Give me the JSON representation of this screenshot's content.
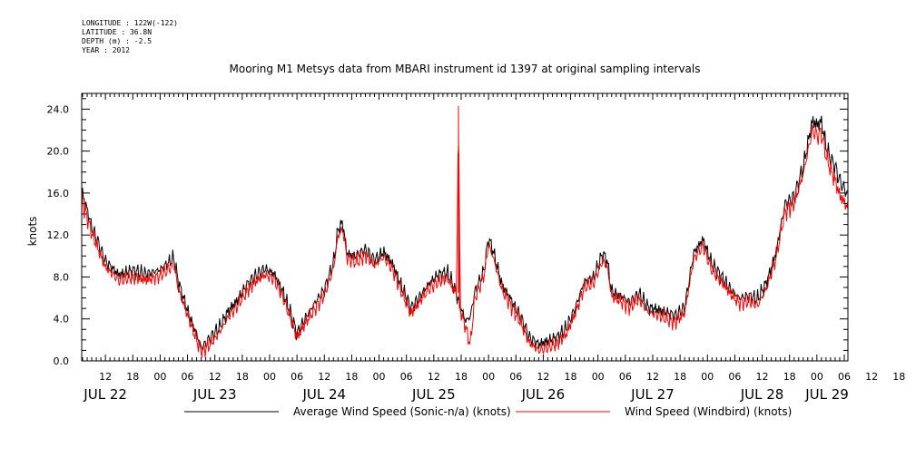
{
  "meta": {
    "longitude": "LONGITUDE : 122W(-122)",
    "latitude": "LATITUDE : 36.8N",
    "depth": "DEPTH (m) : -2.5",
    "year": "YEAR : 2012"
  },
  "chart_data": {
    "type": "line",
    "title": "Mooring M1 Metsys data from MBARI instrument id 1397 at original sampling intervals",
    "ylabel": "knots",
    "xlabel": "",
    "x_unit": "hours since JUL 22 00:00 (2012)",
    "xlim": [
      6.8,
      174.8
    ],
    "ylim": [
      0,
      25.5
    ],
    "y_ticks": [
      "0.0",
      "4.0",
      "8.0",
      "12.0",
      "16.0",
      "20.0",
      "24.0"
    ],
    "x_hour_labels": [
      "12",
      "18",
      "00",
      "06",
      "12",
      "18",
      "00",
      "06",
      "12",
      "18",
      "00",
      "06",
      "12",
      "18",
      "00",
      "06",
      "12",
      "18",
      "00",
      "06",
      "12",
      "18",
      "00",
      "06",
      "12",
      "18",
      "00",
      "06",
      "12",
      "18",
      "00",
      "06"
    ],
    "day_labels": [
      "JUL 22",
      "JUL 23",
      "JUL 24",
      "JUL 25",
      "JUL 26",
      "JUL 27",
      "JUL 28",
      "JUL 29"
    ],
    "grid": false,
    "legend_position": "bottom",
    "series": [
      {
        "name": "Average Wind Speed (Sonic-n/a) (knots)",
        "color": "#000000",
        "points": [
          [
            6.8,
            16.2
          ],
          [
            9,
            12.8
          ],
          [
            12,
            9.5
          ],
          [
            15,
            8.2
          ],
          [
            18,
            8.6
          ],
          [
            21,
            8.3
          ],
          [
            24,
            8.7
          ],
          [
            27,
            9.8
          ],
          [
            28,
            7.5
          ],
          [
            30,
            4.8
          ],
          [
            32,
            2.5
          ],
          [
            33,
            1.2
          ],
          [
            35,
            2.2
          ],
          [
            37,
            3.2
          ],
          [
            39,
            4.8
          ],
          [
            41,
            5.8
          ],
          [
            43,
            7.2
          ],
          [
            45,
            8.2
          ],
          [
            47,
            8.8
          ],
          [
            49,
            8.3
          ],
          [
            51,
            6.5
          ],
          [
            53,
            4.0
          ],
          [
            54,
            2.6
          ],
          [
            56,
            4.2
          ],
          [
            58,
            5.6
          ],
          [
            60,
            6.8
          ],
          [
            62,
            9.3
          ],
          [
            63,
            12.5
          ],
          [
            64,
            13.2
          ],
          [
            65,
            10.2
          ],
          [
            67,
            10.0
          ],
          [
            69,
            10.6
          ],
          [
            71,
            9.6
          ],
          [
            73,
            10.4
          ],
          [
            75,
            9.2
          ],
          [
            77,
            7.0
          ],
          [
            79,
            5.0
          ],
          [
            81,
            6.2
          ],
          [
            83,
            7.4
          ],
          [
            85,
            8.2
          ],
          [
            87,
            8.4
          ],
          [
            88,
            7.5
          ],
          [
            90,
            5.0
          ],
          [
            91,
            3.8
          ],
          [
            92,
            4.2
          ],
          [
            93,
            6.6
          ],
          [
            95,
            8.6
          ],
          [
            96,
            11.7
          ],
          [
            97,
            10.5
          ],
          [
            99,
            7.2
          ],
          [
            101,
            5.8
          ],
          [
            103,
            4.2
          ],
          [
            105,
            2.2
          ],
          [
            107,
            1.6
          ],
          [
            109,
            1.9
          ],
          [
            111,
            2.2
          ],
          [
            113,
            3.1
          ],
          [
            115,
            5.0
          ],
          [
            117,
            7.6
          ],
          [
            119,
            7.9
          ],
          [
            121,
            10.2
          ],
          [
            122,
            9.6
          ],
          [
            123,
            6.6
          ],
          [
            125,
            6.2
          ],
          [
            127,
            5.6
          ],
          [
            129,
            6.4
          ],
          [
            131,
            5.1
          ],
          [
            133,
            4.9
          ],
          [
            135,
            4.6
          ],
          [
            137,
            4.3
          ],
          [
            139,
            5.1
          ],
          [
            141,
            10.3
          ],
          [
            143,
            11.6
          ],
          [
            145,
            9.2
          ],
          [
            147,
            8.1
          ],
          [
            149,
            6.9
          ],
          [
            151,
            6.0
          ],
          [
            153,
            6.2
          ],
          [
            155,
            5.9
          ],
          [
            157,
            7.5
          ],
          [
            159,
            10.3
          ],
          [
            161,
            14.9
          ],
          [
            163,
            15.6
          ],
          [
            165,
            18.5
          ],
          [
            167,
            22.9
          ],
          [
            168,
            22.5
          ],
          [
            169,
            22.8
          ],
          [
            170,
            20.5
          ],
          [
            171,
            19.2
          ],
          [
            172,
            18.5
          ],
          [
            173,
            17.2
          ],
          [
            174.8,
            15.8
          ]
        ]
      },
      {
        "name": "Wind Speed (Windbird) (knots)",
        "color": "#ff0000",
        "points": [
          [
            6.8,
            15.4
          ],
          [
            9,
            12.2
          ],
          [
            12,
            8.9
          ],
          [
            15,
            7.7
          ],
          [
            18,
            8.0
          ],
          [
            21,
            7.7
          ],
          [
            24,
            8.1
          ],
          [
            27,
            9.2
          ],
          [
            28,
            6.9
          ],
          [
            30,
            4.3
          ],
          [
            32,
            2.0
          ],
          [
            33,
            0.8
          ],
          [
            35,
            1.6
          ],
          [
            37,
            2.7
          ],
          [
            39,
            4.2
          ],
          [
            41,
            5.3
          ],
          [
            43,
            6.7
          ],
          [
            45,
            7.6
          ],
          [
            47,
            8.2
          ],
          [
            49,
            7.8
          ],
          [
            51,
            6.0
          ],
          [
            53,
            3.5
          ],
          [
            54,
            2.2
          ],
          [
            56,
            3.7
          ],
          [
            58,
            5.0
          ],
          [
            60,
            6.3
          ],
          [
            62,
            8.8
          ],
          [
            63,
            11.9
          ],
          [
            64,
            12.6
          ],
          [
            65,
            9.8
          ],
          [
            67,
            9.4
          ],
          [
            69,
            10.1
          ],
          [
            71,
            9.1
          ],
          [
            73,
            9.9
          ],
          [
            75,
            8.7
          ],
          [
            77,
            6.5
          ],
          [
            79,
            4.5
          ],
          [
            81,
            5.7
          ],
          [
            83,
            6.9
          ],
          [
            85,
            7.6
          ],
          [
            87,
            7.9
          ],
          [
            88,
            7.0
          ],
          [
            89,
            6.5
          ],
          [
            89.4,
            24.3
          ],
          [
            89.8,
            5.0
          ],
          [
            90,
            4.5
          ],
          [
            91,
            3.2
          ],
          [
            92,
            1.5
          ],
          [
            93,
            6.0
          ],
          [
            95,
            8.1
          ],
          [
            96,
            11.1
          ],
          [
            97,
            9.9
          ],
          [
            99,
            6.7
          ],
          [
            101,
            5.2
          ],
          [
            103,
            3.7
          ],
          [
            105,
            1.7
          ],
          [
            107,
            1.0
          ],
          [
            109,
            1.3
          ],
          [
            111,
            1.7
          ],
          [
            113,
            2.5
          ],
          [
            115,
            4.5
          ],
          [
            117,
            7.0
          ],
          [
            119,
            7.4
          ],
          [
            121,
            9.6
          ],
          [
            122,
            9.1
          ],
          [
            123,
            6.1
          ],
          [
            125,
            5.7
          ],
          [
            127,
            5.1
          ],
          [
            129,
            5.9
          ],
          [
            131,
            4.6
          ],
          [
            133,
            4.4
          ],
          [
            135,
            4.0
          ],
          [
            137,
            3.7
          ],
          [
            139,
            4.6
          ],
          [
            141,
            9.7
          ],
          [
            143,
            11.0
          ],
          [
            145,
            8.6
          ],
          [
            147,
            7.6
          ],
          [
            149,
            6.4
          ],
          [
            151,
            5.5
          ],
          [
            153,
            5.7
          ],
          [
            155,
            5.3
          ],
          [
            157,
            7.0
          ],
          [
            159,
            9.7
          ],
          [
            161,
            14.3
          ],
          [
            163,
            15.0
          ],
          [
            165,
            17.8
          ],
          [
            167,
            22.0
          ],
          [
            168,
            21.5
          ],
          [
            169,
            21.7
          ],
          [
            170,
            19.6
          ],
          [
            171,
            18.2
          ],
          [
            172,
            17.2
          ],
          [
            173,
            15.8
          ],
          [
            174.8,
            14.6
          ]
        ]
      }
    ]
  }
}
